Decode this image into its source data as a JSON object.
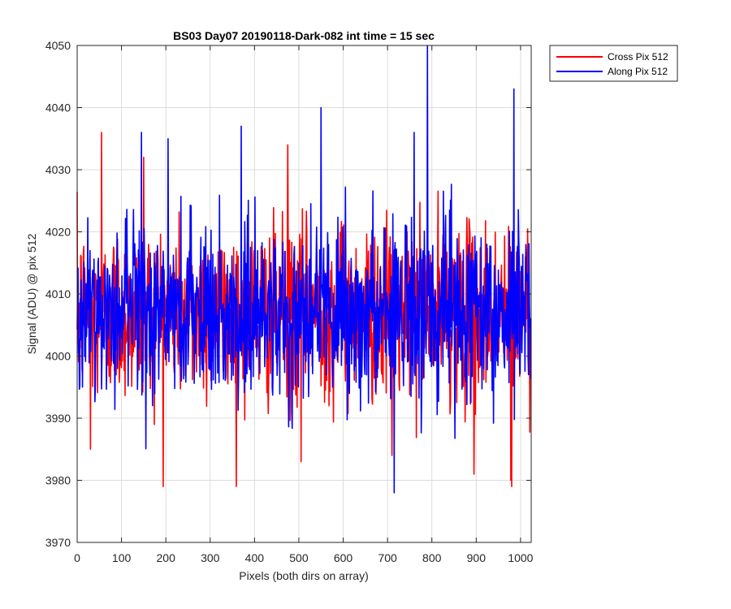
{
  "chart_data": {
    "type": "line",
    "title": "BS03 Day07 20190118-Dark-082 int time = 15 sec",
    "xlabel": "Pixels (both dirs on array)",
    "ylabel": "Signal (ADU) @ pix 512",
    "xlim": [
      0,
      1024
    ],
    "ylim": [
      3970,
      4050
    ],
    "xticks": [
      0,
      100,
      200,
      300,
      400,
      500,
      600,
      700,
      800,
      900,
      1000
    ],
    "yticks": [
      3970,
      3980,
      3990,
      4000,
      4010,
      4020,
      4030,
      4040,
      4050
    ],
    "grid": true,
    "legend_position": "outside-top-right",
    "series": [
      {
        "name": "Cross Pix 512",
        "color": "#ff0000",
        "noise": {
          "mean": 4007,
          "std": 7,
          "min": 3979,
          "max": 4036,
          "count": 1024
        },
        "notable_points": [
          {
            "x": 30,
            "y": 3985
          },
          {
            "x": 55,
            "y": 4036
          },
          {
            "x": 150,
            "y": 4032
          },
          {
            "x": 505,
            "y": 3983
          },
          {
            "x": 475,
            "y": 4034
          },
          {
            "x": 710,
            "y": 3984
          },
          {
            "x": 895,
            "y": 3981
          },
          {
            "x": 980,
            "y": 3979
          },
          {
            "x": 978,
            "y": 3980
          }
        ]
      },
      {
        "name": "Along Pix 512",
        "color": "#0000ff",
        "noise": {
          "mean": 4007,
          "std": 7,
          "min": 3978,
          "max": 4050,
          "count": 1024
        },
        "notable_points": [
          {
            "x": 145,
            "y": 4036
          },
          {
            "x": 205,
            "y": 4035
          },
          {
            "x": 370,
            "y": 4037
          },
          {
            "x": 550,
            "y": 4040
          },
          {
            "x": 715,
            "y": 3978
          },
          {
            "x": 790,
            "y": 4050
          },
          {
            "x": 985,
            "y": 4043
          },
          {
            "x": 760,
            "y": 4036
          }
        ]
      }
    ]
  }
}
